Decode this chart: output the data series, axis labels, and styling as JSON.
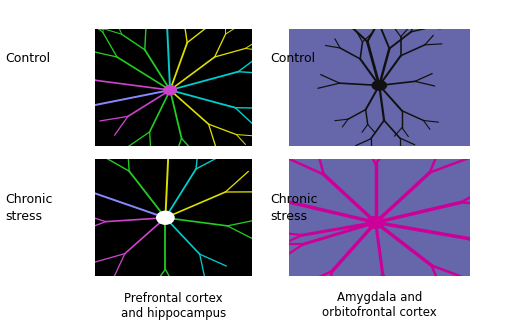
{
  "fig_width": 5.25,
  "fig_height": 3.25,
  "panel_bg_left": "#000000",
  "panel_bg_right": "#6666aa",
  "label_control": "Control",
  "label_chronic": "Chronic\nstress",
  "label_left_bottom": "Prefrontal cortex\nand hippocampus",
  "label_right_bottom": "Amygdala and\norbitofrontal cortex",
  "neuron_color_control_right": "#111111",
  "neuron_color_chronic_right": "#cc0099",
  "font_size_label": 9,
  "font_size_bottom": 8.5
}
